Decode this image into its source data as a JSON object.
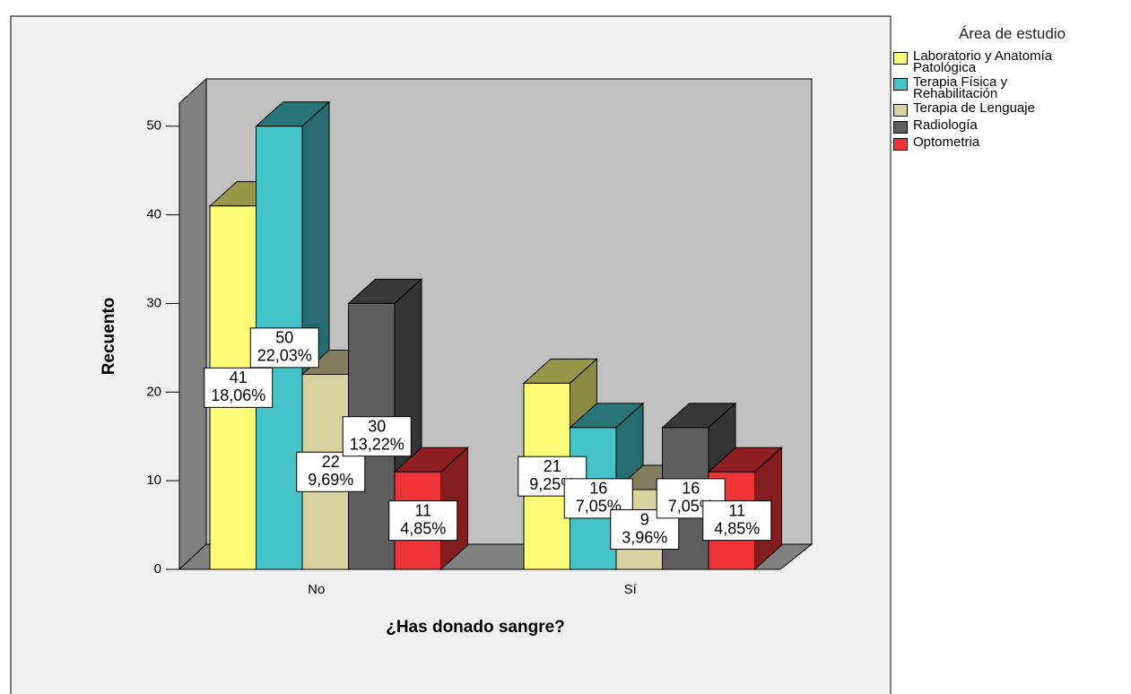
{
  "chart_data": {
    "type": "bar3d",
    "x_label": "¿Has donado sangre?",
    "y_label": "Recuento",
    "legend_title": "Área de estudio",
    "legend": "right",
    "categories": [
      "No",
      "Sí"
    ],
    "ylim": [
      0,
      52.5
    ],
    "yticks": [
      0,
      10,
      20,
      30,
      40,
      50
    ],
    "series": [
      {
        "name": "Laboratorio y Anatomía\nPatológica",
        "color": "#fbfb78",
        "values": [
          41,
          21
        ],
        "percent_labels": [
          "18,06%",
          "9,25%"
        ]
      },
      {
        "name": "Terapia Física y\nRehabilitación",
        "color": "#46c3c8",
        "values": [
          50,
          16
        ],
        "percent_labels": [
          "22,03%",
          "7,05%"
        ]
      },
      {
        "name": "Terapia de Lenguaje",
        "color": "#d8d29e",
        "values": [
          22,
          9
        ],
        "percent_labels": [
          "9,69%",
          "3,96%"
        ]
      },
      {
        "name": "Radiología",
        "color": "#5e5e5e",
        "values": [
          30,
          16
        ],
        "percent_labels": [
          "13,22%",
          "7,05%"
        ]
      },
      {
        "name": "Optometria",
        "color": "#ef3438",
        "values": [
          11,
          11
        ],
        "percent_labels": [
          "4,85%",
          "4,85%"
        ]
      }
    ]
  }
}
